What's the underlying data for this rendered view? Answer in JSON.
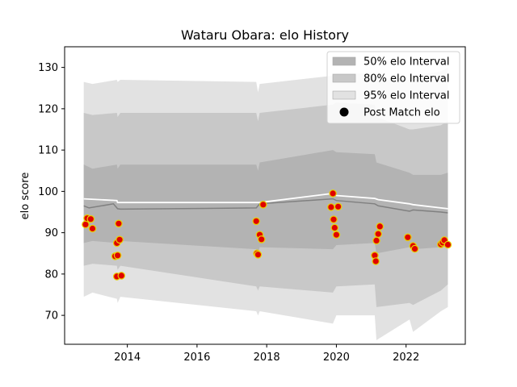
{
  "chart_data": {
    "type": "line",
    "title": "Wataru Obara: elo History",
    "xlabel": "",
    "ylabel": "elo score",
    "xlim": [
      2012.2,
      2023.7
    ],
    "ylim": [
      63,
      135
    ],
    "xticks": [
      2014,
      2016,
      2018,
      2020,
      2022
    ],
    "yticks": [
      70,
      80,
      90,
      100,
      110,
      120,
      130
    ],
    "grid": false,
    "legend_position": "top-right",
    "legend": [
      {
        "key": "band50",
        "label": "50% elo Interval"
      },
      {
        "key": "band80",
        "label": "80% elo Interval"
      },
      {
        "key": "band95",
        "label": "95% elo Interval"
      },
      {
        "key": "post",
        "label": "Post Match elo"
      }
    ],
    "colors": {
      "band50": "#b3b3b3",
      "band80": "#c8c8c8",
      "band95": "#e2e2e2",
      "mean_line": "#808080",
      "white_line": "#ffffff",
      "point_fill": "#e00000",
      "point_edge": "#e8d000"
    },
    "bands": {
      "x": [
        2012.75,
        2013.0,
        2013.7,
        2013.72,
        2013.8,
        2017.7,
        2017.75,
        2017.8,
        2019.9,
        2020.0,
        2021.1,
        2021.15,
        2022.1,
        2022.2,
        2023.0,
        2023.2
      ],
      "band95_upper": [
        126.5,
        126,
        127,
        126.5,
        127,
        126.5,
        124,
        126,
        128,
        128.5,
        128.5,
        127,
        127,
        128,
        129,
        130
      ],
      "band95_lower": [
        74.5,
        75.5,
        74,
        73,
        74.5,
        71,
        70,
        71,
        68,
        70,
        70,
        64,
        69,
        66,
        71,
        72
      ],
      "band80_upper": [
        119,
        118.5,
        119,
        118,
        119,
        119,
        117,
        119,
        121,
        121.5,
        121,
        118,
        115,
        115,
        116,
        117
      ],
      "band80_lower": [
        82,
        82.5,
        82,
        81,
        82,
        77,
        76,
        77,
        75.5,
        77,
        77.5,
        72,
        73,
        72.5,
        76,
        77.5
      ],
      "band50_upper": [
        106.5,
        105.5,
        106.5,
        105.5,
        106.5,
        106.5,
        105,
        107,
        110,
        109.5,
        109,
        107,
        104.5,
        104,
        104,
        104.5
      ],
      "band50_lower": [
        87.5,
        88,
        87.5,
        87,
        88,
        86,
        85,
        86.5,
        86,
        87,
        87.5,
        85,
        86.5,
        86,
        86.5,
        87.5
      ]
    },
    "mean_line": {
      "x": [
        2012.75,
        2012.9,
        2013.6,
        2013.72,
        2013.8,
        2017.7,
        2017.8,
        2019.9,
        2020.0,
        2021.1,
        2021.2,
        2022.1,
        2022.2,
        2023.0,
        2023.2
      ],
      "y": [
        96.5,
        96.0,
        97.0,
        95.8,
        95.7,
        96.0,
        97.0,
        98.2,
        97.8,
        97.0,
        96.5,
        95.2,
        95.5,
        95.0,
        94.8
      ]
    },
    "white_line": {
      "x": [
        2012.75,
        2013.7,
        2013.72,
        2017.7,
        2017.8,
        2019.9,
        2020.0,
        2021.1,
        2021.2,
        2022.1,
        2022.2,
        2023.0,
        2023.2
      ],
      "y": [
        98.2,
        97.8,
        97.3,
        97.3,
        97.3,
        99.5,
        99.0,
        98.3,
        98.0,
        97.0,
        96.8,
        96.0,
        95.8
      ]
    },
    "post_match": {
      "x": [
        2012.8,
        2012.85,
        2012.95,
        2013.0,
        2013.65,
        2013.7,
        2013.72,
        2013.75,
        2013.78,
        2013.7,
        2013.83,
        2017.7,
        2017.72,
        2017.75,
        2017.8,
        2017.85,
        2017.9,
        2019.85,
        2019.9,
        2019.92,
        2019.95,
        2020.0,
        2020.05,
        2021.1,
        2021.13,
        2021.15,
        2021.2,
        2021.25,
        2022.05,
        2022.2,
        2022.25,
        2023.0,
        2023.05,
        2023.1,
        2023.2
      ],
      "y": [
        92.0,
        93.5,
        93.3,
        91.0,
        84.3,
        87.5,
        84.5,
        92.2,
        88.3,
        79.4,
        79.6,
        92.8,
        85.0,
        84.7,
        89.5,
        88.4,
        96.8,
        96.2,
        99.5,
        93.2,
        91.2,
        89.5,
        96.3,
        84.5,
        83.1,
        88.1,
        89.7,
        91.5,
        88.9,
        86.8,
        86.1,
        87.2,
        87.6,
        88.2,
        87.1
      ]
    }
  }
}
